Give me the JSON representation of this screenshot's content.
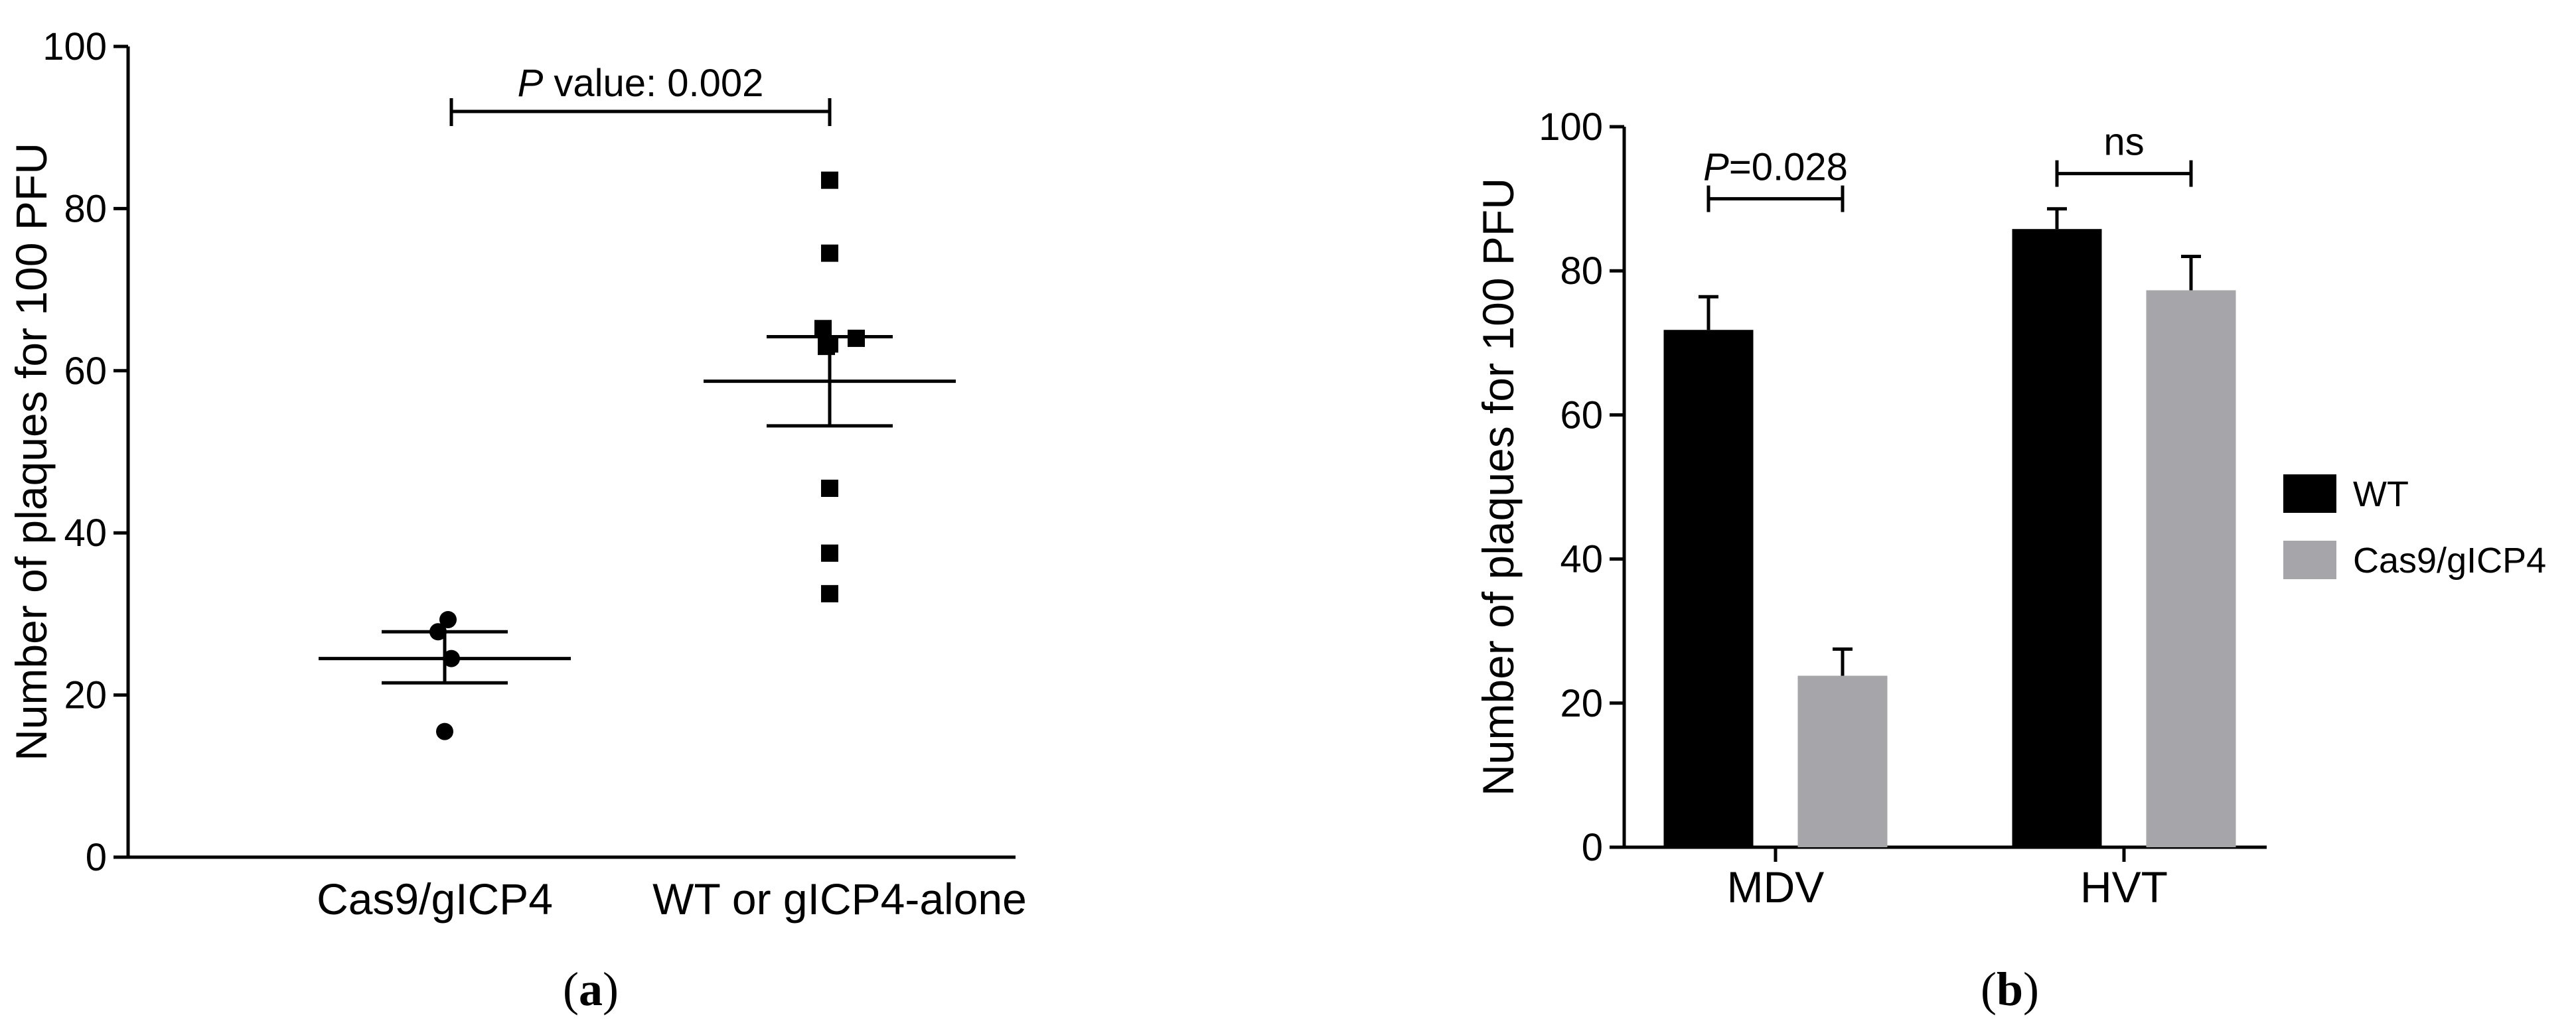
{
  "chart_data": [
    {
      "type": "scatter",
      "panel_label_prefix": "(",
      "panel_label_letter": "a",
      "panel_label_suffix": ")",
      "ylabel": "Number of plaques for 100 PFU",
      "ylim": [
        0,
        100
      ],
      "yticks": [
        0,
        20,
        40,
        60,
        80,
        100
      ],
      "categories": [
        "Cas9/gICP4",
        "WT or gICP4-alone"
      ],
      "groups": [
        {
          "category": "Cas9/gICP4",
          "marker": "circle",
          "points": [
            15.5,
            24.5,
            27.8,
            29.3
          ],
          "mean": 24.5,
          "sem_low": 21.5,
          "sem_high": 27.8
        },
        {
          "category": "WT or gICP4-alone",
          "marker": "square",
          "points": [
            32.5,
            37.5,
            45.5,
            63.0,
            63.3,
            64.0,
            65.2,
            74.5,
            83.5
          ],
          "mean": 58.7,
          "sem_low": 53.2,
          "sem_high": 64.2
        }
      ],
      "annotation": {
        "italic": "P",
        "text": " value: 0.002"
      }
    },
    {
      "type": "bar",
      "panel_label_prefix": "(",
      "panel_label_letter": "b",
      "panel_label_suffix": ")",
      "ylabel": "Number of plaques for 100 PFU",
      "ylim": [
        0,
        100
      ],
      "yticks": [
        0,
        20,
        40,
        60,
        80,
        100
      ],
      "categories": [
        "MDV",
        "HVT"
      ],
      "series": [
        {
          "name": "WT",
          "color": "#000000",
          "values": [
            71.8,
            85.8
          ],
          "errors": [
            4.6,
            2.8
          ]
        },
        {
          "name": "Cas9/gICP4",
          "color": "#a6a6aa",
          "values": [
            23.8,
            77.3
          ],
          "errors": [
            3.7,
            4.7
          ]
        }
      ],
      "annotations": [
        {
          "category": "MDV",
          "italic": "P",
          "text": "=0.028"
        },
        {
          "category": "HVT",
          "italic": "",
          "text": "ns"
        }
      ],
      "legend_position": "right"
    }
  ]
}
